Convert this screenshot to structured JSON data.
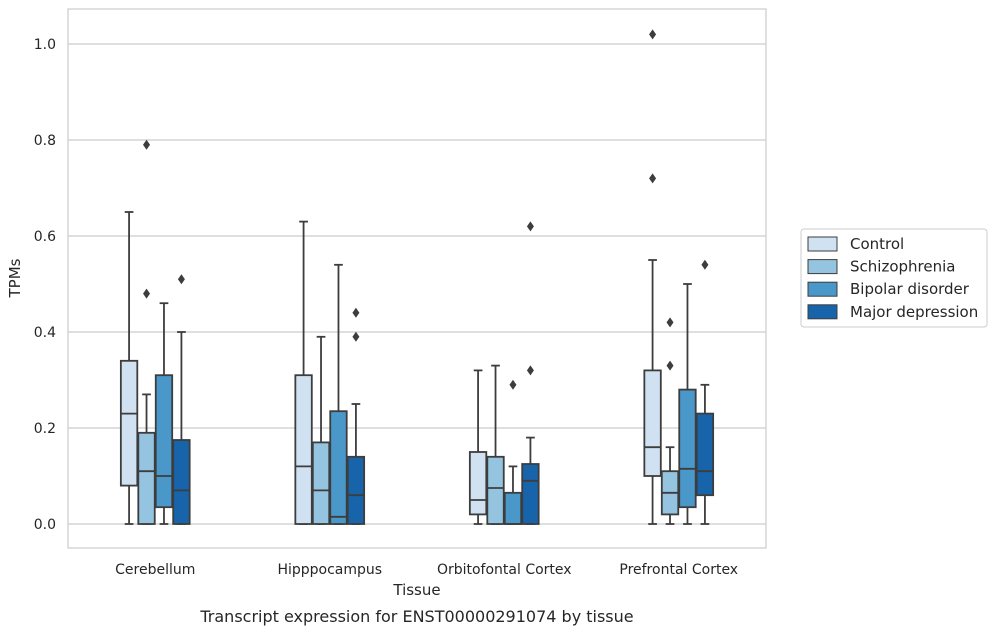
{
  "caption": "Transcript expression for ENST00000291074 by tissue",
  "chart_data": {
    "type": "box",
    "xlabel": "Tissue",
    "ylabel": "TPMs",
    "ylim": [
      -0.05,
      1.07
    ],
    "yticks": [
      0.0,
      0.2,
      0.4,
      0.6,
      0.8,
      1.0
    ],
    "ytick_labels": [
      "0.0",
      "0.2",
      "0.4",
      "0.6",
      "0.8",
      "1.0"
    ],
    "grid": "horizontal",
    "legend_position": "right",
    "categories": [
      "Cerebellum",
      "Hipppocampus",
      "Orbitofontal Cortex",
      "Prefrontal Cortex"
    ],
    "series": [
      {
        "name": "Control",
        "color": "#d0e1f2",
        "boxes": [
          {
            "whislo": 0.0,
            "q1": 0.08,
            "med": 0.23,
            "q3": 0.34,
            "whishi": 0.65,
            "fliers": []
          },
          {
            "whislo": 0.0,
            "q1": 0.0,
            "med": 0.12,
            "q3": 0.31,
            "whishi": 0.63,
            "fliers": []
          },
          {
            "whislo": 0.0,
            "q1": 0.02,
            "med": 0.05,
            "q3": 0.15,
            "whishi": 0.32,
            "fliers": []
          },
          {
            "whislo": 0.0,
            "q1": 0.1,
            "med": 0.16,
            "q3": 0.32,
            "whishi": 0.55,
            "fliers": [
              0.72,
              1.02
            ]
          }
        ]
      },
      {
        "name": "Schizophrenia",
        "color": "#94c4df",
        "boxes": [
          {
            "whislo": 0.0,
            "q1": 0.0,
            "med": 0.11,
            "q3": 0.19,
            "whishi": 0.27,
            "fliers": [
              0.48,
              0.79
            ]
          },
          {
            "whislo": 0.0,
            "q1": 0.0,
            "med": 0.07,
            "q3": 0.17,
            "whishi": 0.39,
            "fliers": []
          },
          {
            "whislo": 0.0,
            "q1": 0.0,
            "med": 0.075,
            "q3": 0.14,
            "whishi": 0.33,
            "fliers": []
          },
          {
            "whislo": 0.0,
            "q1": 0.02,
            "med": 0.065,
            "q3": 0.11,
            "whishi": 0.16,
            "fliers": [
              0.33,
              0.42
            ]
          }
        ]
      },
      {
        "name": "Bipolar disorder",
        "color": "#4a98c9",
        "boxes": [
          {
            "whislo": 0.0,
            "q1": 0.035,
            "med": 0.1,
            "q3": 0.31,
            "whishi": 0.46,
            "fliers": []
          },
          {
            "whislo": 0.0,
            "q1": 0.0,
            "med": 0.015,
            "q3": 0.235,
            "whishi": 0.54,
            "fliers": []
          },
          {
            "whislo": 0.0,
            "q1": 0.0,
            "med": 0.0,
            "q3": 0.065,
            "whishi": 0.12,
            "fliers": [
              0.29
            ]
          },
          {
            "whislo": 0.0,
            "q1": 0.035,
            "med": 0.115,
            "q3": 0.28,
            "whishi": 0.5,
            "fliers": []
          }
        ]
      },
      {
        "name": "Major depression",
        "color": "#1764ab",
        "boxes": [
          {
            "whislo": 0.0,
            "q1": 0.0,
            "med": 0.07,
            "q3": 0.175,
            "whishi": 0.4,
            "fliers": [
              0.51
            ]
          },
          {
            "whislo": 0.0,
            "q1": 0.0,
            "med": 0.06,
            "q3": 0.14,
            "whishi": 0.25,
            "fliers": [
              0.39,
              0.44
            ]
          },
          {
            "whislo": 0.0,
            "q1": 0.0,
            "med": 0.09,
            "q3": 0.125,
            "whishi": 0.18,
            "fliers": [
              0.32,
              0.62
            ]
          },
          {
            "whislo": 0.0,
            "q1": 0.06,
            "med": 0.11,
            "q3": 0.23,
            "whishi": 0.29,
            "fliers": [
              0.54
            ]
          }
        ]
      }
    ]
  }
}
